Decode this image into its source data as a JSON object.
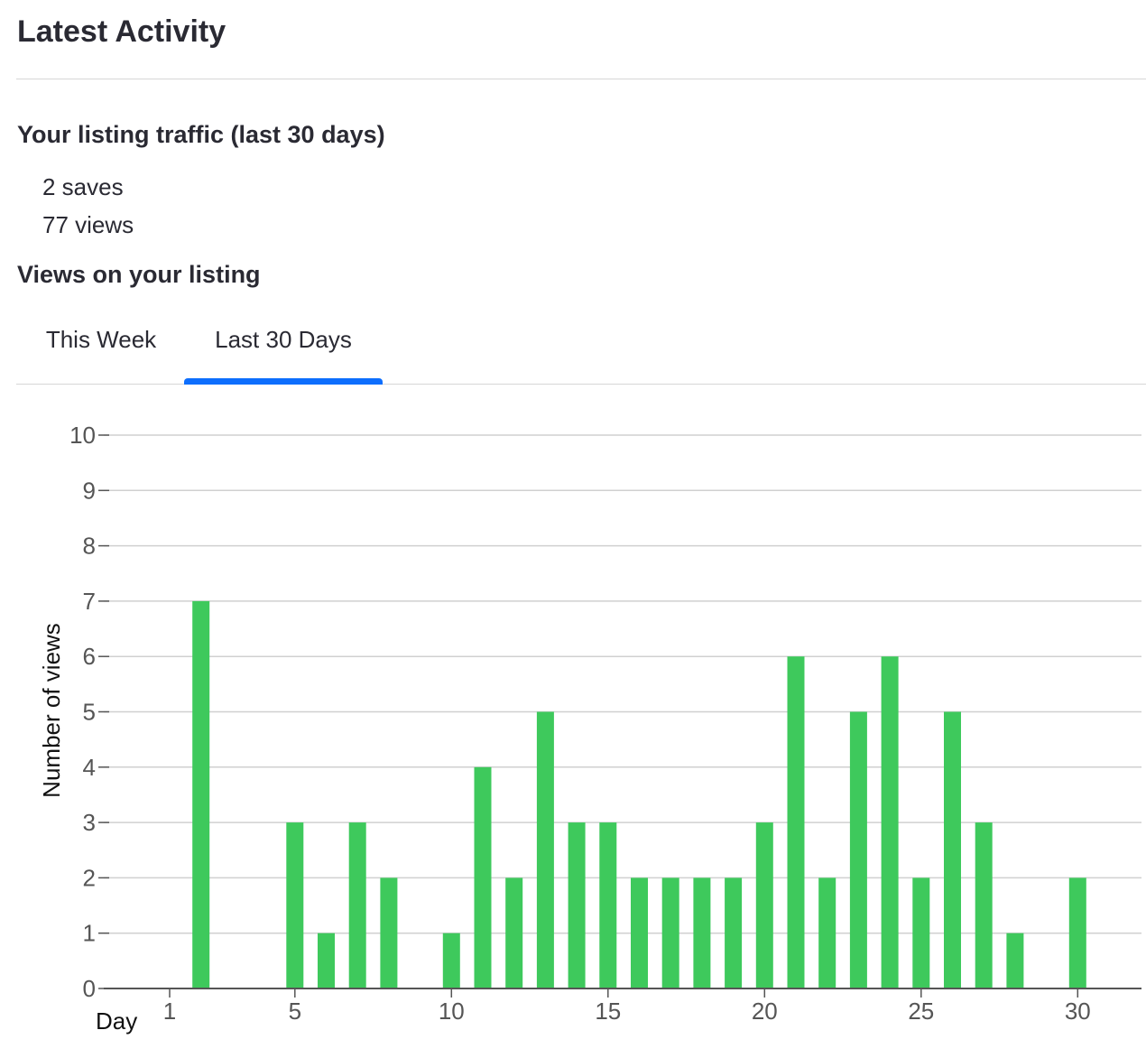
{
  "header": {
    "title": "Latest Activity"
  },
  "traffic": {
    "heading": "Your listing traffic (last 30 days)",
    "saves": "2 saves",
    "views": "77 views"
  },
  "views_section": {
    "heading": "Views on your listing"
  },
  "tabs": [
    {
      "label": "This Week",
      "selected": false
    },
    {
      "label": "Last 30 Days",
      "selected": true
    }
  ],
  "colors": {
    "accent": "#0d6efd",
    "bar": "#3ec95c",
    "grid": "#d0d0d0"
  },
  "chart_data": {
    "type": "bar",
    "x": [
      1,
      2,
      3,
      4,
      5,
      6,
      7,
      8,
      9,
      10,
      11,
      12,
      13,
      14,
      15,
      16,
      17,
      18,
      19,
      20,
      21,
      22,
      23,
      24,
      25,
      26,
      27,
      28,
      29,
      30
    ],
    "values": [
      0,
      7,
      0,
      0,
      3,
      1,
      3,
      2,
      0,
      1,
      4,
      2,
      5,
      3,
      3,
      2,
      2,
      2,
      2,
      3,
      6,
      2,
      5,
      6,
      2,
      5,
      3,
      1,
      0,
      2
    ],
    "xlabel": "Day",
    "ylabel": "Number of views",
    "ylim": [
      0,
      10
    ],
    "yticks": [
      0,
      1,
      2,
      3,
      4,
      5,
      6,
      7,
      8,
      9,
      10
    ],
    "xticks": [
      1,
      5,
      10,
      15,
      20,
      25,
      30
    ],
    "grid": true,
    "legend": "none"
  }
}
